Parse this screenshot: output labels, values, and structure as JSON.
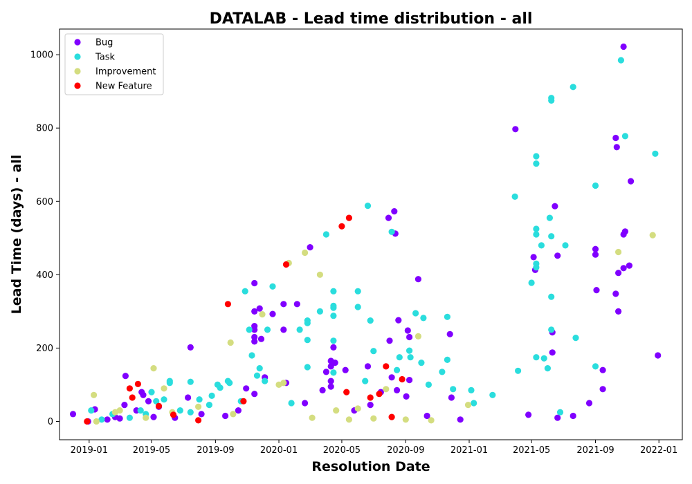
{
  "chart_data": {
    "type": "scatter",
    "title": "DATALAB - Lead time distribution - all",
    "xlabel": "Resolution Date",
    "ylabel": "Lead Time (days) - all",
    "x_axis_type": "date",
    "xlim": [
      "2018-11-05",
      "2022-02-15"
    ],
    "ylim": [
      -50,
      1070
    ],
    "x_ticks": [
      "2019-01-01",
      "2019-05-01",
      "2019-09-01",
      "2020-01-01",
      "2020-05-01",
      "2020-09-01",
      "2021-01-01",
      "2021-05-01",
      "2021-09-01",
      "2022-01-01"
    ],
    "x_tick_labels": [
      "2019-01",
      "2019-05",
      "2019-09",
      "2020-01",
      "2020-05",
      "2020-09",
      "2021-01",
      "2021-05",
      "2021-09",
      "2022-01"
    ],
    "y_ticks": [
      0,
      200,
      400,
      600,
      800,
      1000
    ],
    "grid": false,
    "legend_position": "top-left",
    "series": [
      {
        "name": "Bug",
        "color": "#8000ff",
        "points": [
          {
            "x": "2018-12-01",
            "y": 20
          },
          {
            "x": "2018-12-30",
            "y": 0
          },
          {
            "x": "2019-01-12",
            "y": 33
          },
          {
            "x": "2019-02-05",
            "y": 5
          },
          {
            "x": "2019-02-20",
            "y": 12
          },
          {
            "x": "2019-03-01",
            "y": 8
          },
          {
            "x": "2019-03-10",
            "y": 45
          },
          {
            "x": "2019-03-12",
            "y": 124
          },
          {
            "x": "2019-04-02",
            "y": 30
          },
          {
            "x": "2019-04-12",
            "y": 80
          },
          {
            "x": "2019-04-15",
            "y": 72
          },
          {
            "x": "2019-04-25",
            "y": 55
          },
          {
            "x": "2019-05-05",
            "y": 12
          },
          {
            "x": "2019-05-15",
            "y": 40
          },
          {
            "x": "2019-06-15",
            "y": 10
          },
          {
            "x": "2019-07-10",
            "y": 65
          },
          {
            "x": "2019-07-15",
            "y": 202
          },
          {
            "x": "2019-08-05",
            "y": 20
          },
          {
            "x": "2019-09-20",
            "y": 15
          },
          {
            "x": "2019-10-15",
            "y": 30
          },
          {
            "x": "2019-10-30",
            "y": 90
          },
          {
            "x": "2019-11-15",
            "y": 377
          },
          {
            "x": "2019-11-15",
            "y": 300
          },
          {
            "x": "2019-11-15",
            "y": 260
          },
          {
            "x": "2019-11-15",
            "y": 250
          },
          {
            "x": "2019-11-15",
            "y": 230
          },
          {
            "x": "2019-11-15",
            "y": 218
          },
          {
            "x": "2019-11-15",
            "y": 75
          },
          {
            "x": "2019-11-25",
            "y": 308
          },
          {
            "x": "2019-11-28",
            "y": 225
          },
          {
            "x": "2019-12-05",
            "y": 120
          },
          {
            "x": "2019-12-20",
            "y": 293
          },
          {
            "x": "2020-01-10",
            "y": 320
          },
          {
            "x": "2020-01-10",
            "y": 250
          },
          {
            "x": "2020-01-15",
            "y": 105
          },
          {
            "x": "2020-02-05",
            "y": 320
          },
          {
            "x": "2020-02-20",
            "y": 50
          },
          {
            "x": "2020-03-01",
            "y": 475
          },
          {
            "x": "2020-03-25",
            "y": 85
          },
          {
            "x": "2020-04-01",
            "y": 135
          },
          {
            "x": "2020-04-10",
            "y": 165
          },
          {
            "x": "2020-04-10",
            "y": 150
          },
          {
            "x": "2020-04-10",
            "y": 110
          },
          {
            "x": "2020-04-10",
            "y": 95
          },
          {
            "x": "2020-04-15",
            "y": 202
          },
          {
            "x": "2020-04-18",
            "y": 160
          },
          {
            "x": "2020-05-08",
            "y": 140
          },
          {
            "x": "2020-05-25",
            "y": 30
          },
          {
            "x": "2020-06-20",
            "y": 150
          },
          {
            "x": "2020-06-25",
            "y": 45
          },
          {
            "x": "2020-07-15",
            "y": 80
          },
          {
            "x": "2020-07-30",
            "y": 555
          },
          {
            "x": "2020-08-01",
            "y": 220
          },
          {
            "x": "2020-08-05",
            "y": 120
          },
          {
            "x": "2020-08-10",
            "y": 573
          },
          {
            "x": "2020-08-12",
            "y": 512
          },
          {
            "x": "2020-08-15",
            "y": 85
          },
          {
            "x": "2020-08-18",
            "y": 276
          },
          {
            "x": "2020-09-02",
            "y": 68
          },
          {
            "x": "2020-09-05",
            "y": 248
          },
          {
            "x": "2020-09-08",
            "y": 230
          },
          {
            "x": "2020-09-08",
            "y": 113
          },
          {
            "x": "2020-09-25",
            "y": 388
          },
          {
            "x": "2020-10-12",
            "y": 15
          },
          {
            "x": "2020-11-25",
            "y": 238
          },
          {
            "x": "2020-11-28",
            "y": 65
          },
          {
            "x": "2020-12-15",
            "y": 5
          },
          {
            "x": "2021-03-31",
            "y": 797
          },
          {
            "x": "2021-04-25",
            "y": 18
          },
          {
            "x": "2021-05-05",
            "y": 448
          },
          {
            "x": "2021-05-08",
            "y": 413
          },
          {
            "x": "2021-06-10",
            "y": 243
          },
          {
            "x": "2021-06-10",
            "y": 188
          },
          {
            "x": "2021-06-15",
            "y": 587
          },
          {
            "x": "2021-06-20",
            "y": 452
          },
          {
            "x": "2021-06-20",
            "y": 10
          },
          {
            "x": "2021-07-20",
            "y": 15
          },
          {
            "x": "2021-08-20",
            "y": 50
          },
          {
            "x": "2021-09-01",
            "y": 470
          },
          {
            "x": "2021-09-01",
            "y": 455
          },
          {
            "x": "2021-09-03",
            "y": 358
          },
          {
            "x": "2021-09-15",
            "y": 140
          },
          {
            "x": "2021-09-15",
            "y": 88
          },
          {
            "x": "2021-10-10",
            "y": 773
          },
          {
            "x": "2021-10-10",
            "y": 348
          },
          {
            "x": "2021-10-12",
            "y": 748
          },
          {
            "x": "2021-10-15",
            "y": 405
          },
          {
            "x": "2021-10-15",
            "y": 300
          },
          {
            "x": "2021-10-25",
            "y": 1022
          },
          {
            "x": "2021-10-25",
            "y": 510
          },
          {
            "x": "2021-10-25",
            "y": 418
          },
          {
            "x": "2021-10-28",
            "y": 518
          },
          {
            "x": "2021-11-05",
            "y": 425
          },
          {
            "x": "2021-11-08",
            "y": 655
          },
          {
            "x": "2021-12-30",
            "y": 180
          }
        ]
      },
      {
        "name": "Task",
        "color": "#2adddd",
        "points": [
          {
            "x": "2019-01-05",
            "y": 30
          },
          {
            "x": "2019-01-25",
            "y": 5
          },
          {
            "x": "2019-02-15",
            "y": 20
          },
          {
            "x": "2019-03-20",
            "y": 10
          },
          {
            "x": "2019-04-10",
            "y": 30
          },
          {
            "x": "2019-04-20",
            "y": 20
          },
          {
            "x": "2019-05-01",
            "y": 80
          },
          {
            "x": "2019-05-10",
            "y": 55
          },
          {
            "x": "2019-05-25",
            "y": 60
          },
          {
            "x": "2019-06-05",
            "y": 110
          },
          {
            "x": "2019-06-05",
            "y": 105
          },
          {
            "x": "2019-06-25",
            "y": 30
          },
          {
            "x": "2019-07-15",
            "y": 108
          },
          {
            "x": "2019-07-15",
            "y": 25
          },
          {
            "x": "2019-08-01",
            "y": 60
          },
          {
            "x": "2019-08-20",
            "y": 45
          },
          {
            "x": "2019-08-25",
            "y": 70
          },
          {
            "x": "2019-09-05",
            "y": 100
          },
          {
            "x": "2019-09-10",
            "y": 92
          },
          {
            "x": "2019-09-25",
            "y": 110
          },
          {
            "x": "2019-09-28",
            "y": 105
          },
          {
            "x": "2019-10-20",
            "y": 55
          },
          {
            "x": "2019-10-28",
            "y": 355
          },
          {
            "x": "2019-11-05",
            "y": 250
          },
          {
            "x": "2019-11-10",
            "y": 180
          },
          {
            "x": "2019-11-20",
            "y": 125
          },
          {
            "x": "2019-11-25",
            "y": 145
          },
          {
            "x": "2019-12-05",
            "y": 110
          },
          {
            "x": "2019-12-10",
            "y": 250
          },
          {
            "x": "2019-12-20",
            "y": 368
          },
          {
            "x": "2020-01-25",
            "y": 50
          },
          {
            "x": "2020-02-10",
            "y": 250
          },
          {
            "x": "2020-02-25",
            "y": 275
          },
          {
            "x": "2020-02-25",
            "y": 268
          },
          {
            "x": "2020-02-25",
            "y": 222
          },
          {
            "x": "2020-02-25",
            "y": 148
          },
          {
            "x": "2020-03-20",
            "y": 300
          },
          {
            "x": "2020-04-01",
            "y": 510
          },
          {
            "x": "2020-04-15",
            "y": 355
          },
          {
            "x": "2020-04-15",
            "y": 315
          },
          {
            "x": "2020-04-15",
            "y": 310
          },
          {
            "x": "2020-04-15",
            "y": 288
          },
          {
            "x": "2020-04-15",
            "y": 220
          },
          {
            "x": "2020-04-15",
            "y": 133
          },
          {
            "x": "2020-06-01",
            "y": 355
          },
          {
            "x": "2020-06-01",
            "y": 312
          },
          {
            "x": "2020-06-15",
            "y": 110
          },
          {
            "x": "2020-06-20",
            "y": 588
          },
          {
            "x": "2020-06-25",
            "y": 275
          },
          {
            "x": "2020-07-01",
            "y": 192
          },
          {
            "x": "2020-08-05",
            "y": 517
          },
          {
            "x": "2020-08-15",
            "y": 140
          },
          {
            "x": "2020-08-20",
            "y": 175
          },
          {
            "x": "2020-09-08",
            "y": 193
          },
          {
            "x": "2020-09-10",
            "y": 175
          },
          {
            "x": "2020-09-20",
            "y": 295
          },
          {
            "x": "2020-10-01",
            "y": 160
          },
          {
            "x": "2020-10-05",
            "y": 282
          },
          {
            "x": "2020-10-15",
            "y": 100
          },
          {
            "x": "2020-11-10",
            "y": 135
          },
          {
            "x": "2020-11-20",
            "y": 285
          },
          {
            "x": "2020-11-20",
            "y": 168
          },
          {
            "x": "2020-12-01",
            "y": 88
          },
          {
            "x": "2021-01-05",
            "y": 85
          },
          {
            "x": "2021-01-10",
            "y": 50
          },
          {
            "x": "2021-02-15",
            "y": 72
          },
          {
            "x": "2021-03-30",
            "y": 613
          },
          {
            "x": "2021-04-05",
            "y": 138
          },
          {
            "x": "2021-05-01",
            "y": 378
          },
          {
            "x": "2021-05-10",
            "y": 723
          },
          {
            "x": "2021-05-10",
            "y": 703
          },
          {
            "x": "2021-05-10",
            "y": 525
          },
          {
            "x": "2021-05-10",
            "y": 510
          },
          {
            "x": "2021-05-10",
            "y": 430
          },
          {
            "x": "2021-05-10",
            "y": 420
          },
          {
            "x": "2021-05-10",
            "y": 175
          },
          {
            "x": "2021-05-20",
            "y": 480
          },
          {
            "x": "2021-05-25",
            "y": 172
          },
          {
            "x": "2021-06-01",
            "y": 145
          },
          {
            "x": "2021-06-05",
            "y": 555
          },
          {
            "x": "2021-06-08",
            "y": 882
          },
          {
            "x": "2021-06-08",
            "y": 875
          },
          {
            "x": "2021-06-08",
            "y": 505
          },
          {
            "x": "2021-06-08",
            "y": 340
          },
          {
            "x": "2021-06-08",
            "y": 250
          },
          {
            "x": "2021-06-25",
            "y": 25
          },
          {
            "x": "2021-07-05",
            "y": 480
          },
          {
            "x": "2021-07-20",
            "y": 912
          },
          {
            "x": "2021-07-25",
            "y": 228
          },
          {
            "x": "2021-09-01",
            "y": 643
          },
          {
            "x": "2021-09-01",
            "y": 150
          },
          {
            "x": "2021-10-20",
            "y": 985
          },
          {
            "x": "2021-10-28",
            "y": 778
          },
          {
            "x": "2021-12-25",
            "y": 730
          }
        ]
      },
      {
        "name": "Improvement",
        "color": "#d4dd80",
        "points": [
          {
            "x": "2019-01-10",
            "y": 72
          },
          {
            "x": "2019-01-15",
            "y": 0
          },
          {
            "x": "2019-02-20",
            "y": 25
          },
          {
            "x": "2019-03-01",
            "y": 30
          },
          {
            "x": "2019-04-20",
            "y": 10
          },
          {
            "x": "2019-05-05",
            "y": 145
          },
          {
            "x": "2019-05-25",
            "y": 90
          },
          {
            "x": "2019-06-10",
            "y": 25
          },
          {
            "x": "2019-07-30",
            "y": 40
          },
          {
            "x": "2019-09-30",
            "y": 215
          },
          {
            "x": "2019-10-05",
            "y": 20
          },
          {
            "x": "2019-11-30",
            "y": 292
          },
          {
            "x": "2020-01-01",
            "y": 100
          },
          {
            "x": "2020-01-10",
            "y": 105
          },
          {
            "x": "2020-01-20",
            "y": 432
          },
          {
            "x": "2020-02-20",
            "y": 460
          },
          {
            "x": "2020-03-05",
            "y": 10
          },
          {
            "x": "2020-03-20",
            "y": 400
          },
          {
            "x": "2020-04-20",
            "y": 30
          },
          {
            "x": "2020-05-15",
            "y": 5
          },
          {
            "x": "2020-06-01",
            "y": 35
          },
          {
            "x": "2020-07-01",
            "y": 8
          },
          {
            "x": "2020-07-25",
            "y": 88
          },
          {
            "x": "2020-09-01",
            "y": 5
          },
          {
            "x": "2020-09-25",
            "y": 232
          },
          {
            "x": "2020-10-20",
            "y": 3
          },
          {
            "x": "2020-12-30",
            "y": 45
          },
          {
            "x": "2021-10-15",
            "y": 462
          },
          {
            "x": "2021-12-20",
            "y": 508
          }
        ]
      },
      {
        "name": "New Feature",
        "color": "#ff0000",
        "points": [
          {
            "x": "2018-12-28",
            "y": 0
          },
          {
            "x": "2019-03-20",
            "y": 90
          },
          {
            "x": "2019-03-25",
            "y": 65
          },
          {
            "x": "2019-04-05",
            "y": 102
          },
          {
            "x": "2019-05-15",
            "y": 42
          },
          {
            "x": "2019-06-12",
            "y": 18
          },
          {
            "x": "2019-07-30",
            "y": 3
          },
          {
            "x": "2019-09-25",
            "y": 320
          },
          {
            "x": "2019-10-25",
            "y": 55
          },
          {
            "x": "2020-01-15",
            "y": 428
          },
          {
            "x": "2020-05-01",
            "y": 532
          },
          {
            "x": "2020-05-15",
            "y": 555
          },
          {
            "x": "2020-05-10",
            "y": 80
          },
          {
            "x": "2020-06-25",
            "y": 65
          },
          {
            "x": "2020-07-12",
            "y": 75
          },
          {
            "x": "2020-07-25",
            "y": 150
          },
          {
            "x": "2020-08-05",
            "y": 12
          },
          {
            "x": "2020-08-25",
            "y": 115
          }
        ]
      }
    ]
  }
}
